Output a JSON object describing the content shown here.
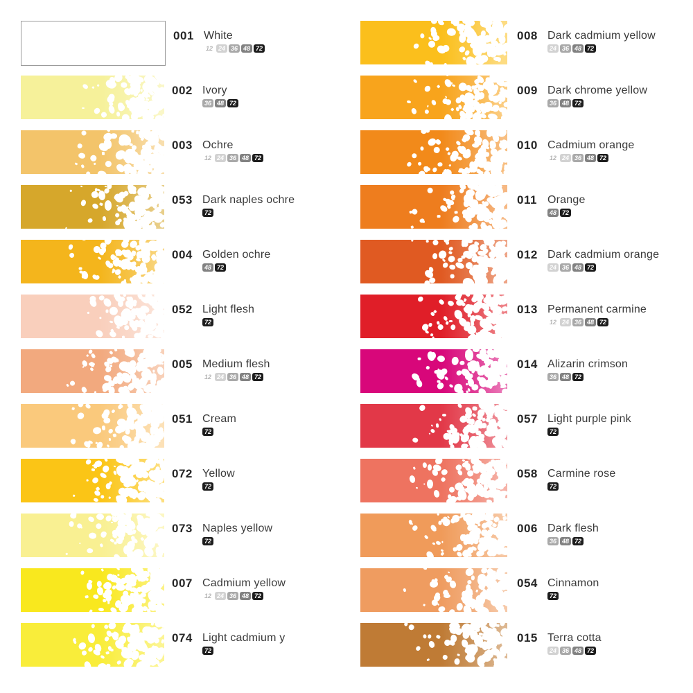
{
  "chart_title": "",
  "badge_colors": {
    "12": {
      "bg": "#ffffff",
      "fg": "#b5b5b5"
    },
    "24": {
      "bg": "#d2d2d2",
      "fg": "#ffffff"
    },
    "36": {
      "bg": "#a9a9a9",
      "fg": "#ffffff"
    },
    "48": {
      "bg": "#828282",
      "fg": "#ffffff"
    },
    "72": {
      "bg": "#1c1c1c",
      "fg": "#ffffff"
    }
  },
  "text_colors": {
    "number": "#262626",
    "name": "#3a3a3a"
  },
  "columns": [
    {
      "rows": [
        {
          "number": "001",
          "name": "White",
          "color": "#ffffff",
          "is_white": true,
          "sets": [
            "12",
            "24",
            "36",
            "48",
            "72"
          ]
        },
        {
          "number": "002",
          "name": "Ivory",
          "color": "#f6f19a",
          "sets": [
            "36",
            "48",
            "72"
          ]
        },
        {
          "number": "003",
          "name": "Ochre",
          "color": "#f3c46a",
          "sets": [
            "12",
            "24",
            "36",
            "48",
            "72"
          ]
        },
        {
          "number": "053",
          "name": "Dark naples ochre",
          "color": "#d6a72b",
          "sets": [
            "72"
          ]
        },
        {
          "number": "004",
          "name": "Golden ochre",
          "color": "#f4b51c",
          "sets": [
            "48",
            "72"
          ]
        },
        {
          "number": "052",
          "name": "Light flesh",
          "color": "#f9cfbc",
          "sets": [
            "72"
          ]
        },
        {
          "number": "005",
          "name": "Medium flesh",
          "color": "#f2a97e",
          "sets": [
            "12",
            "24",
            "36",
            "48",
            "72"
          ]
        },
        {
          "number": "051",
          "name": "Cream",
          "color": "#fac97c",
          "sets": [
            "72"
          ]
        },
        {
          "number": "072",
          "name": "Yellow",
          "color": "#fbc516",
          "sets": [
            "72"
          ]
        },
        {
          "number": "073",
          "name": "Naples yellow",
          "color": "#f9f092",
          "sets": [
            "72"
          ]
        },
        {
          "number": "007",
          "name": "Cadmium yellow",
          "color": "#f9e81e",
          "sets": [
            "12",
            "24",
            "36",
            "48",
            "72"
          ]
        },
        {
          "number": "074",
          "name": "Light cadmium y",
          "color": "#f9ed3a",
          "sets": [
            "72"
          ]
        }
      ]
    },
    {
      "rows": [
        {
          "number": "008",
          "name": "Dark cadmium yellow",
          "color": "#fbbf1c",
          "sets": [
            "24",
            "36",
            "48",
            "72"
          ]
        },
        {
          "number": "009",
          "name": "Dark chrome yellow",
          "color": "#f8a41c",
          "sets": [
            "36",
            "48",
            "72"
          ]
        },
        {
          "number": "010",
          "name": "Cadmium orange",
          "color": "#f28a1a",
          "sets": [
            "12",
            "24",
            "36",
            "48",
            "72"
          ]
        },
        {
          "number": "011",
          "name": "Orange",
          "color": "#ee7d1e",
          "sets": [
            "48",
            "72"
          ]
        },
        {
          "number": "012",
          "name": "Dark cadmium orange",
          "color": "#e05a22",
          "sets": [
            "24",
            "36",
            "48",
            "72"
          ]
        },
        {
          "number": "013",
          "name": "Permanent carmine",
          "color": "#e01e28",
          "sets": [
            "12",
            "24",
            "36",
            "48",
            "72"
          ]
        },
        {
          "number": "014",
          "name": "Alizarin crimson",
          "color": "#d8077a",
          "sets": [
            "36",
            "48",
            "72"
          ]
        },
        {
          "number": "057",
          "name": "Light purple pink",
          "color": "#e23848",
          "sets": [
            "72"
          ]
        },
        {
          "number": "058",
          "name": "Carmine rose",
          "color": "#ee7360",
          "sets": [
            "72"
          ]
        },
        {
          "number": "006",
          "name": "Dark flesh",
          "color": "#f09b5a",
          "sets": [
            "36",
            "48",
            "72"
          ]
        },
        {
          "number": "054",
          "name": "Cinnamon",
          "color": "#ef9c60",
          "sets": [
            "72"
          ]
        },
        {
          "number": "015",
          "name": "Terra cotta",
          "color": "#bf7b35",
          "sets": [
            "24",
            "36",
            "48",
            "72"
          ]
        }
      ]
    }
  ]
}
